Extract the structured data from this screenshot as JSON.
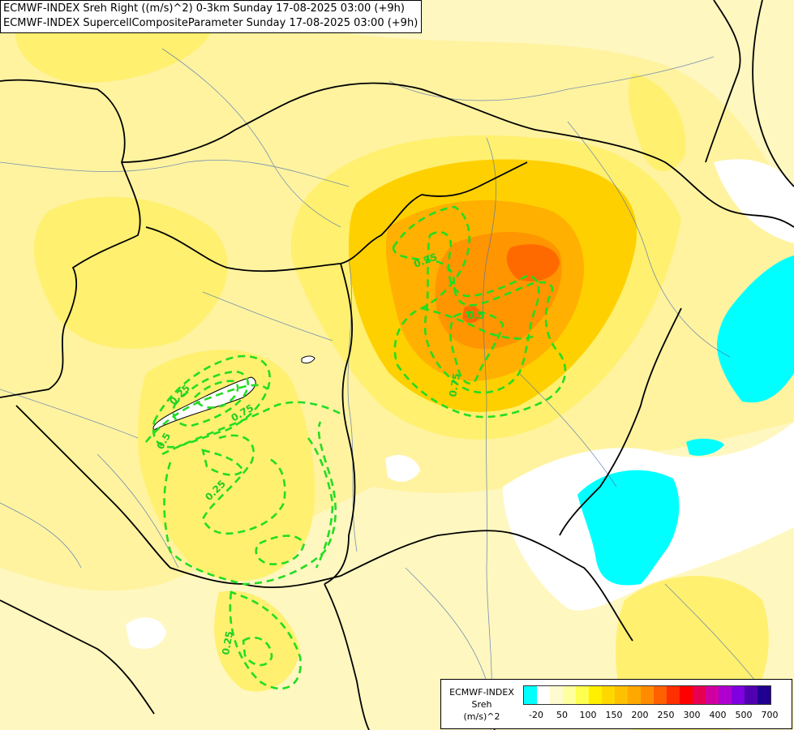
{
  "header": {
    "line1": "ECMWF-INDEX Sreh Right ((m/s)^2) 0-3km Sunday 17-08-2025 03:00 (+9h)",
    "line2": "ECMWF-INDEX SupercellCompositeParameter Sunday 17-08-2025 03:00 (+9h)"
  },
  "legend": {
    "title_line1": "ECMWF-INDEX",
    "title_line2": "Sreh",
    "title_line3": "(m/s)^2",
    "colors": [
      "#00ffff",
      "#ffffff",
      "#fffbd0",
      "#ffffa0",
      "#ffff50",
      "#fff000",
      "#ffd800",
      "#ffc000",
      "#ffa800",
      "#ff8c00",
      "#ff6000",
      "#ff3000",
      "#ff0000",
      "#e80050",
      "#d000a0",
      "#b000d0",
      "#8000e0",
      "#5000b0",
      "#200090"
    ],
    "ticks": [
      "-20",
      "50",
      "100",
      "150",
      "200",
      "250",
      "300",
      "400",
      "500",
      "700"
    ]
  },
  "contour_labels": [
    "0.25",
    "0.25",
    "0.25",
    "0.25",
    "0.5",
    "0.75",
    "0.75",
    "0.5"
  ]
}
